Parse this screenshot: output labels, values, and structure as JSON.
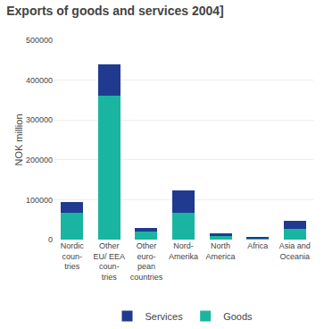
{
  "chart_data": {
    "type": "bar",
    "stacked": true,
    "title": "Exports of goods and services 2004]",
    "ylabel": "NOK million",
    "categories": [
      "Nordic\ncoun-\ntries",
      "Other\nEU/ EEA\ncoun-\ntries",
      "Other\neuro-\npean\ncountries",
      "Nord-\nAmerika",
      "North\nAmerica",
      "Africa",
      "Asia and\nOceania"
    ],
    "series": [
      {
        "name": "Goods",
        "color": "#1ab5a0",
        "values": [
          68000,
          360000,
          20000,
          68000,
          8000,
          3000,
          28000
        ]
      },
      {
        "name": "Services",
        "color": "#1f3a8f",
        "values": [
          27000,
          80000,
          10000,
          55000,
          7000,
          3000,
          18000
        ]
      }
    ],
    "ylim": [
      0,
      500000
    ],
    "yticks": [
      0,
      100000,
      200000,
      300000,
      400000,
      500000
    ],
    "grid": true,
    "legend": "bottom"
  }
}
